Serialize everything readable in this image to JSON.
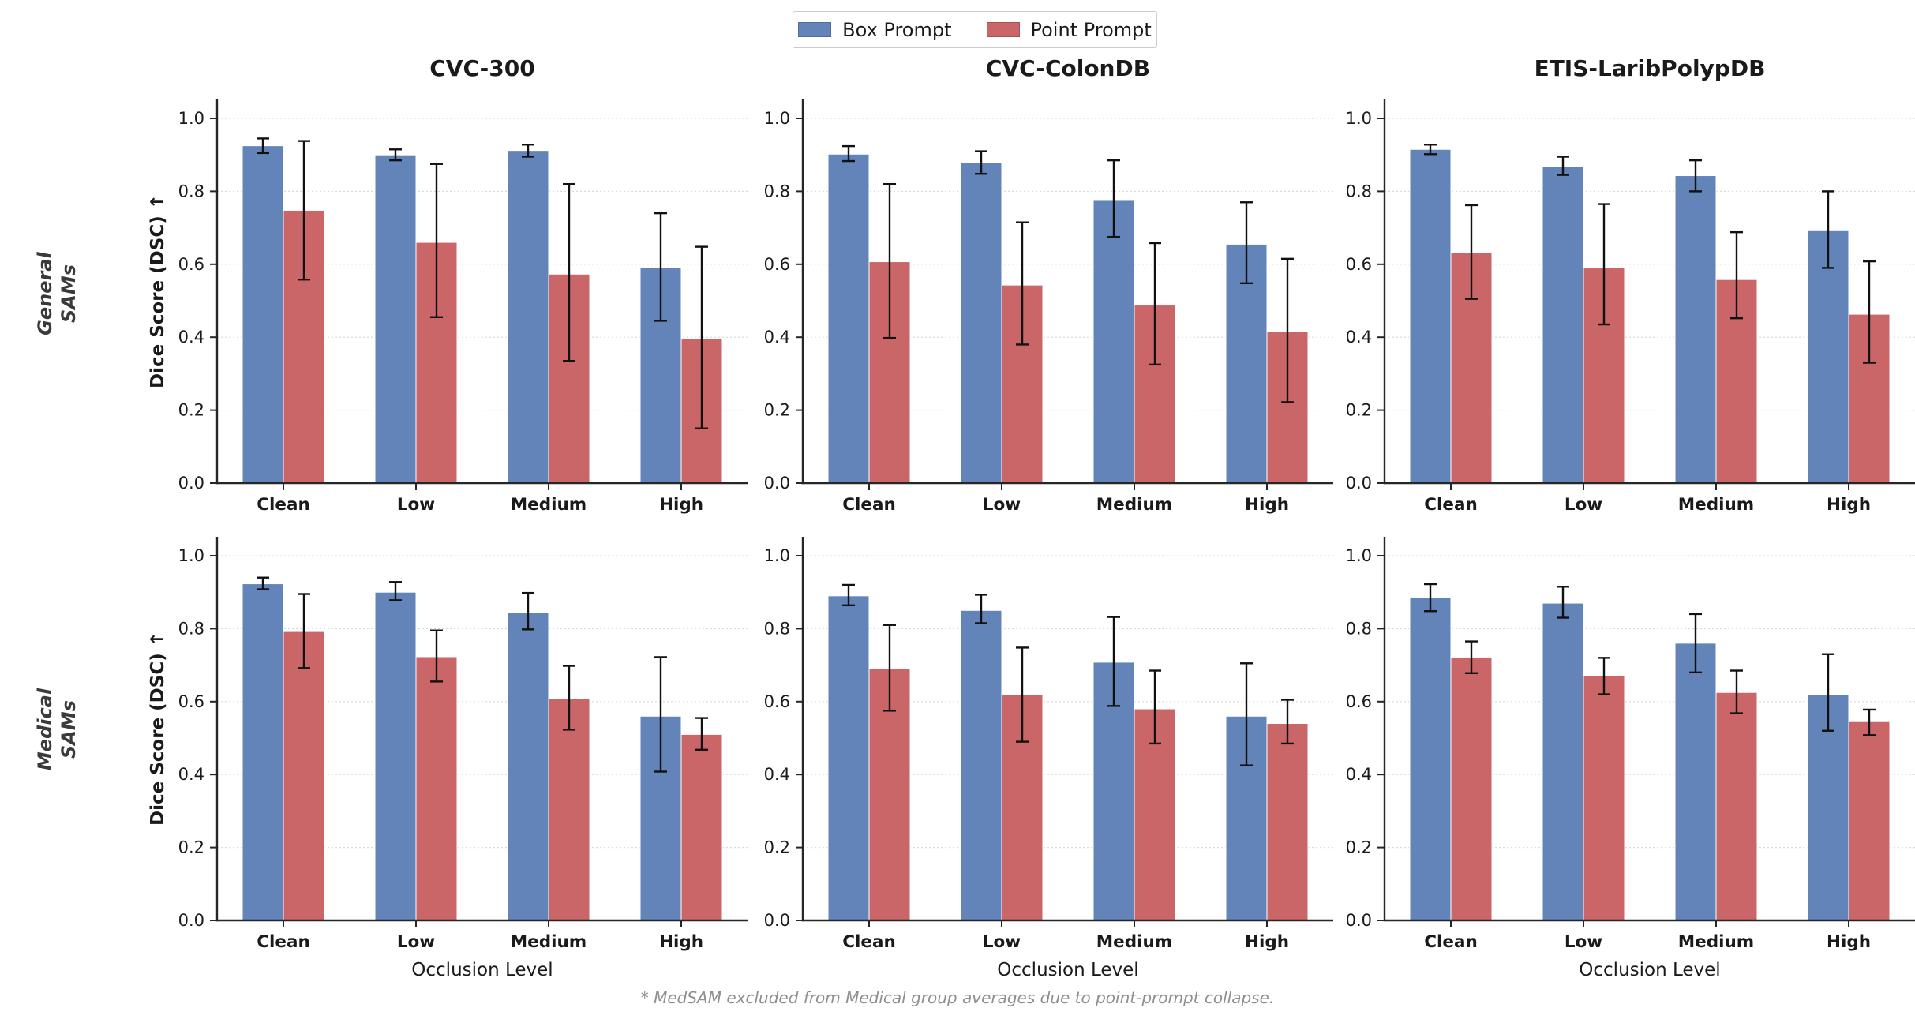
{
  "legend": {
    "items": [
      {
        "label": "Box Prompt",
        "color": "#6384b9"
      },
      {
        "label": "Point Prompt",
        "color": "#ca6568"
      }
    ]
  },
  "footnote": "* MedSAM excluded from Medical group averages due to point-prompt collapse.",
  "chart_data": {
    "type": "bar",
    "categories": [
      "Clean",
      "Low",
      "Medium",
      "High"
    ],
    "xlabel": "Occlusion Level",
    "ylabel": "Dice Score (DSC) ↑",
    "ylim": [
      0,
      1.05
    ],
    "yticks": [
      0.0,
      0.2,
      0.4,
      0.6,
      0.8,
      1.0
    ],
    "grid": "horizontal dashed",
    "legend_position": "top center",
    "error_bars": true,
    "colors": {
      "box": "#6384b9",
      "point": "#ca6568",
      "error": "#111111"
    },
    "col_titles": [
      "CVC-300",
      "CVC-ColonDB",
      "ETIS-LaribPolypDB"
    ],
    "row_labels": [
      {
        "line1": "General",
        "line2": "SAMs"
      },
      {
        "line1": "Medical",
        "line2": "SAMs"
      }
    ],
    "series_names": [
      "Box Prompt",
      "Point Prompt"
    ],
    "rows": [
      {
        "row": "General SAMs",
        "plots": [
          {
            "title": "CVC-300",
            "series": [
              {
                "name": "Box Prompt",
                "values": [
                  0.925,
                  0.9,
                  0.912,
                  0.59
                ],
                "err_lo": [
                  0.905,
                  0.885,
                  0.895,
                  0.445
                ],
                "err_hi": [
                  0.945,
                  0.915,
                  0.928,
                  0.74
                ]
              },
              {
                "name": "Point Prompt",
                "values": [
                  0.748,
                  0.66,
                  0.573,
                  0.395
                ],
                "err_lo": [
                  0.558,
                  0.455,
                  0.335,
                  0.15
                ],
                "err_hi": [
                  0.938,
                  0.875,
                  0.82,
                  0.648
                ]
              }
            ]
          },
          {
            "title": "CVC-ColonDB",
            "series": [
              {
                "name": "Box Prompt",
                "values": [
                  0.902,
                  0.878,
                  0.775,
                  0.655
                ],
                "err_lo": [
                  0.883,
                  0.848,
                  0.675,
                  0.548
                ],
                "err_hi": [
                  0.924,
                  0.91,
                  0.885,
                  0.77
                ]
              },
              {
                "name": "Point Prompt",
                "values": [
                  0.607,
                  0.543,
                  0.488,
                  0.415
                ],
                "err_lo": [
                  0.398,
                  0.38,
                  0.325,
                  0.222
                ],
                "err_hi": [
                  0.82,
                  0.715,
                  0.658,
                  0.615
                ]
              }
            ]
          },
          {
            "title": "ETIS-LaribPolypDB",
            "series": [
              {
                "name": "Box Prompt",
                "values": [
                  0.915,
                  0.868,
                  0.843,
                  0.692
                ],
                "err_lo": [
                  0.902,
                  0.845,
                  0.8,
                  0.59
                ],
                "err_hi": [
                  0.928,
                  0.895,
                  0.885,
                  0.8
                ]
              },
              {
                "name": "Point Prompt",
                "values": [
                  0.632,
                  0.59,
                  0.558,
                  0.463
                ],
                "err_lo": [
                  0.505,
                  0.435,
                  0.452,
                  0.33
                ],
                "err_hi": [
                  0.762,
                  0.765,
                  0.688,
                  0.608
                ]
              }
            ]
          }
        ]
      },
      {
        "row": "Medical SAMs",
        "plots": [
          {
            "title": "CVC-300",
            "series": [
              {
                "name": "Box Prompt",
                "values": [
                  0.923,
                  0.9,
                  0.845,
                  0.56
                ],
                "err_lo": [
                  0.908,
                  0.878,
                  0.798,
                  0.408
                ],
                "err_hi": [
                  0.94,
                  0.928,
                  0.898,
                  0.722
                ]
              },
              {
                "name": "Point Prompt",
                "values": [
                  0.792,
                  0.723,
                  0.608,
                  0.51
                ],
                "err_lo": [
                  0.692,
                  0.655,
                  0.523,
                  0.468
                ],
                "err_hi": [
                  0.895,
                  0.795,
                  0.698,
                  0.555
                ]
              }
            ]
          },
          {
            "title": "CVC-ColonDB",
            "series": [
              {
                "name": "Box Prompt",
                "values": [
                  0.89,
                  0.85,
                  0.708,
                  0.56
                ],
                "err_lo": [
                  0.864,
                  0.815,
                  0.588,
                  0.425
                ],
                "err_hi": [
                  0.92,
                  0.893,
                  0.832,
                  0.705
                ]
              },
              {
                "name": "Point Prompt",
                "values": [
                  0.69,
                  0.618,
                  0.58,
                  0.54
                ],
                "err_lo": [
                  0.575,
                  0.49,
                  0.485,
                  0.485
                ],
                "err_hi": [
                  0.81,
                  0.748,
                  0.685,
                  0.605
                ]
              }
            ]
          },
          {
            "title": "ETIS-LaribPolypDB",
            "series": [
              {
                "name": "Box Prompt",
                "values": [
                  0.885,
                  0.87,
                  0.76,
                  0.62
                ],
                "err_lo": [
                  0.848,
                  0.83,
                  0.68,
                  0.52
                ],
                "err_hi": [
                  0.922,
                  0.915,
                  0.84,
                  0.73
                ]
              },
              {
                "name": "Point Prompt",
                "values": [
                  0.722,
                  0.67,
                  0.625,
                  0.545
                ],
                "err_lo": [
                  0.678,
                  0.62,
                  0.568,
                  0.508
                ],
                "err_hi": [
                  0.765,
                  0.72,
                  0.685,
                  0.578
                ]
              }
            ]
          }
        ]
      }
    ]
  }
}
